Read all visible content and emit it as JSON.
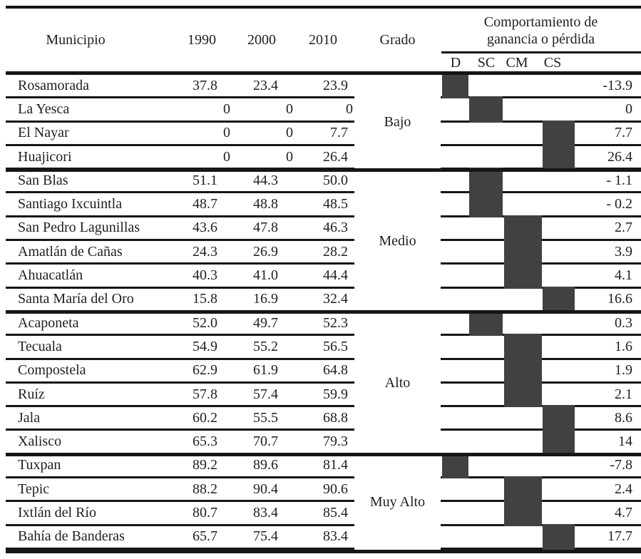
{
  "table": {
    "header": {
      "municipio": "Municipio",
      "y1990": "1990",
      "y2000": "2000",
      "y2010": "2010",
      "grado": "Grado",
      "comportamiento": [
        "Comportamiento de",
        "ganancia o pérdida"
      ],
      "subcolumns": [
        "D",
        "SC",
        "CM",
        "CS"
      ]
    },
    "groups": [
      {
        "grado": "Bajo",
        "rows": [
          {
            "municipio": "Rosamorada",
            "v1990": "37.8",
            "v2000": "23.4",
            "v2010": "23.9",
            "category": "D",
            "change": "-13.9"
          },
          {
            "municipio": "La Yesca",
            "v1990": "0",
            "v2000": "0",
            "v2010": "0",
            "category": "SC",
            "change": "0"
          },
          {
            "municipio": "El Nayar",
            "v1990": "0",
            "v2000": "0",
            "v2010": "7.7",
            "category": "CS",
            "change": "7.7"
          },
          {
            "municipio": "Huajicori",
            "v1990": "0",
            "v2000": "0",
            "v2010": "26.4",
            "category": "CS",
            "change": "26.4"
          }
        ]
      },
      {
        "grado": "Medio",
        "rows": [
          {
            "municipio": "San Blas",
            "v1990": "51.1",
            "v2000": "44.3",
            "v2010": "50.0",
            "category": "SC",
            "change": "- 1.1"
          },
          {
            "municipio": "Santiago Ixcuintla",
            "v1990": "48.7",
            "v2000": "48.8",
            "v2010": "48.5",
            "category": "SC",
            "change": "- 0.2"
          },
          {
            "municipio": "San Pedro Lagunillas",
            "v1990": "43.6",
            "v2000": "47.8",
            "v2010": "46.3",
            "category": "CM",
            "change": "2.7"
          },
          {
            "municipio": "Amatlán de Cañas",
            "v1990": "24.3",
            "v2000": "26.9",
            "v2010": "28.2",
            "category": "CM",
            "change": "3.9"
          },
          {
            "municipio": "Ahuacatlán",
            "v1990": "40.3",
            "v2000": "41.0",
            "v2010": "44.4",
            "category": "CM",
            "change": "4.1"
          },
          {
            "municipio": "Santa María del Oro",
            "v1990": "15.8",
            "v2000": "16.9",
            "v2010": "32.4",
            "category": "CS",
            "change": "16.6"
          }
        ]
      },
      {
        "grado": "Alto",
        "rows": [
          {
            "municipio": "Acaponeta",
            "v1990": "52.0",
            "v2000": "49.7",
            "v2010": "52.3",
            "category": "SC",
            "change": "0.3"
          },
          {
            "municipio": "Tecuala",
            "v1990": "54.9",
            "v2000": "55.2",
            "v2010": "56.5",
            "category": "CM",
            "change": "1.6"
          },
          {
            "municipio": "Compostela",
            "v1990": "62.9",
            "v2000": "61.9",
            "v2010": "64.8",
            "category": "CM",
            "change": "1.9"
          },
          {
            "municipio": "Ruíz",
            "v1990": "57.8",
            "v2000": "57.4",
            "v2010": "59.9",
            "category": "CM",
            "change": "2.1"
          },
          {
            "municipio": "Jala",
            "v1990": "60.2",
            "v2000": "55.5",
            "v2010": "68.8",
            "category": "CS",
            "change": "8.6"
          },
          {
            "municipio": "Xalisco",
            "v1990": "65.3",
            "v2000": "70.7",
            "v2010": "79.3",
            "category": "CS",
            "change": "14"
          }
        ]
      },
      {
        "grado": "Muy Alto",
        "rows": [
          {
            "municipio": "Tuxpan",
            "v1990": "89.2",
            "v2000": "89.6",
            "v2010": "81.4",
            "category": "D",
            "change": "-7.8"
          },
          {
            "municipio": "Tepic",
            "v1990": "88.2",
            "v2000": "90.4",
            "v2010": "90.6",
            "category": "CM",
            "change": "2.4"
          },
          {
            "municipio": "Ixtlán del Río",
            "v1990": "80.7",
            "v2000": "83.4",
            "v2010": "85.4",
            "category": "CM",
            "change": "4.7"
          },
          {
            "municipio": "Bahía de Banderas",
            "v1990": "65.7",
            "v2000": "75.4",
            "v2010": "83.4",
            "category": "CS",
            "change": "17.7"
          }
        ]
      }
    ]
  },
  "colors": {
    "line": "#161616",
    "marker_fill": "#414141",
    "text": "#1f1f1f",
    "background": "#ffffff"
  }
}
